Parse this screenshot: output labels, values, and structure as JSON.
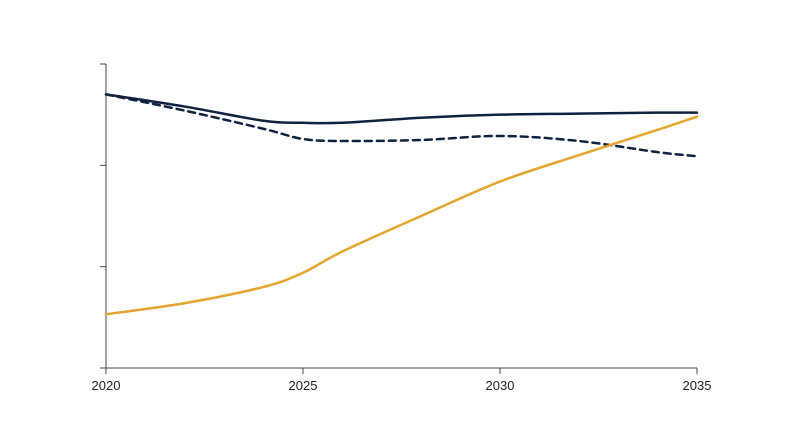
{
  "chart_data": {
    "type": "line",
    "x": [
      2020,
      2022,
      2024,
      2025,
      2026,
      2028,
      2030,
      2032,
      2034,
      2035
    ],
    "xticks": [
      "2020",
      "2025",
      "2030",
      "2035"
    ],
    "xlim": [
      2020,
      2035
    ],
    "ylim": [
      0,
      3
    ],
    "yticks": [
      0,
      1,
      2,
      3
    ],
    "grid": false,
    "legend": "none",
    "series": [
      {
        "values": [
          2.7,
          2.58,
          2.44,
          2.42,
          2.42,
          2.47,
          2.5,
          2.51,
          2.52,
          2.52
        ],
        "color": "#0f2240",
        "dash": "solid"
      },
      {
        "values": [
          2.7,
          2.54,
          2.36,
          2.26,
          2.24,
          2.25,
          2.29,
          2.24,
          2.13,
          2.09
        ],
        "color": "#0f2240",
        "dash": "dashed"
      },
      {
        "values": [
          0.53,
          0.64,
          0.8,
          0.94,
          1.15,
          1.5,
          1.84,
          2.1,
          2.35,
          2.48
        ],
        "color": "#e3a52e",
        "dash": "solid"
      }
    ]
  }
}
